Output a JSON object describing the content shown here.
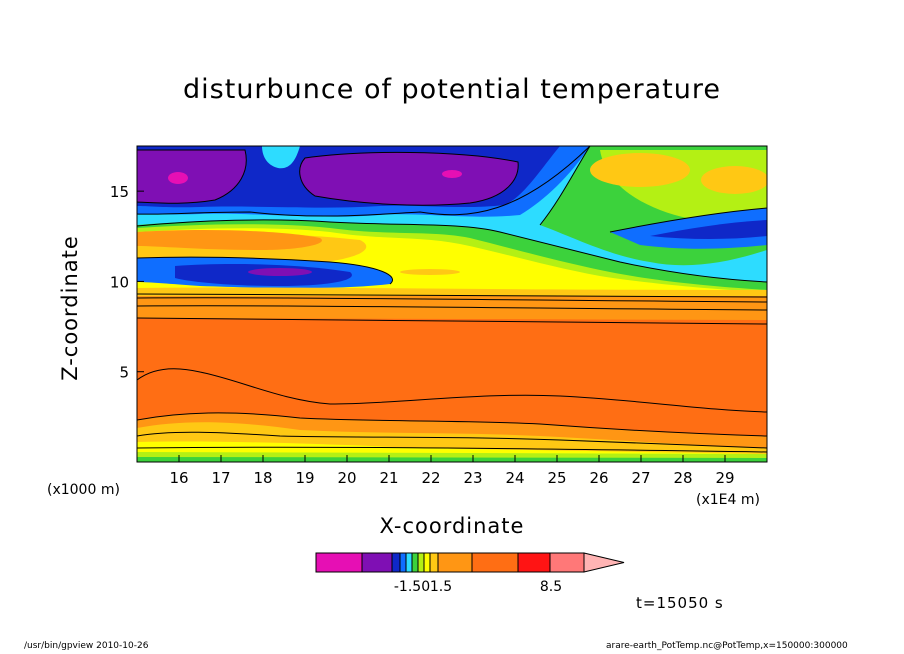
{
  "title": "disturbunce of potential temperature",
  "time_label": "t=15050 s",
  "footer": {
    "left": "/usr/bin/gpview   2010-10-26",
    "right": "arare-earth_PotTemp.nc@PotTemp,x=150000:300000"
  },
  "colorbar": {
    "colors": [
      "#e60fb4",
      "#7f0fb4",
      "#0f28c8",
      "#0f6eff",
      "#2ddcff",
      "#3cd23c",
      "#b4f014",
      "#ffff00",
      "#ffc814",
      "#ff9614",
      "#ff6e14",
      "#ff1414",
      "#ff7878",
      "#ffb4b4"
    ],
    "tick_labels": [
      "-1.50",
      "1.5",
      "8.5"
    ]
  },
  "chart_data": {
    "type": "heatmap",
    "title": "disturbunce of potential temperature",
    "xlabel": "X-coordinate",
    "ylabel": "Z-coordinate",
    "x_unit_note": "(x1000 m)",
    "x_scale_note": "(x1E4 m)",
    "x_ticks": [
      "16",
      "17",
      "18",
      "19",
      "20",
      "21",
      "22",
      "23",
      "24",
      "25",
      "26",
      "27",
      "28",
      "29"
    ],
    "y_ticks": [
      "5",
      "10",
      "15"
    ],
    "xlim": [
      15,
      30
    ],
    "ylim": [
      0,
      17.5
    ],
    "palette": {
      "magenta": "#e60fb4",
      "purple": "#7f0fb4",
      "dark_blue": "#0f28c8",
      "blue": "#0f6eff",
      "cyan": "#2ddcff",
      "green": "#3cd23c",
      "yellow_green": "#b4f014",
      "yellow": "#ffff00",
      "gold": "#ffc814",
      "orange": "#ff9614",
      "dark_orange": "#ff6e14"
    },
    "regions": [
      {
        "label": "upper purple cell (west)",
        "x": [
          15.0,
          17.3
        ],
        "z": [
          14.3,
          17.3
        ],
        "value_class": "purple"
      },
      {
        "label": "upper purple cell (central)",
        "x": [
          19.0,
          24.0
        ],
        "z": [
          14.0,
          17.3
        ],
        "value_class": "purple"
      },
      {
        "label": "cyan layer",
        "x": [
          15.0,
          30.0
        ],
        "z": [
          11.5,
          15.5
        ],
        "value_class": "cyan"
      },
      {
        "label": "upper gold patches (east)",
        "x": [
          26.0,
          30.0
        ],
        "z": [
          14.5,
          17.0
        ],
        "value_class": "gold"
      },
      {
        "label": "mid blue band",
        "x": [
          15.0,
          22.0
        ],
        "z": [
          9.7,
          11.5
        ],
        "value_class": "dark_blue"
      },
      {
        "label": "stable layer",
        "x": [
          15.0,
          30.0
        ],
        "z": [
          8.0,
          9.8
        ],
        "value_class": "orange"
      },
      {
        "label": "lower troposphere",
        "x": [
          15.0,
          30.0
        ],
        "z": [
          0.5,
          8.0
        ],
        "value_class": "dark_orange"
      },
      {
        "label": "surface layer",
        "x": [
          15.0,
          30.0
        ],
        "z": [
          0.0,
          2.0
        ],
        "value_class": "yellow"
      }
    ],
    "grid": false,
    "legend": "colorbar bottom-center"
  }
}
